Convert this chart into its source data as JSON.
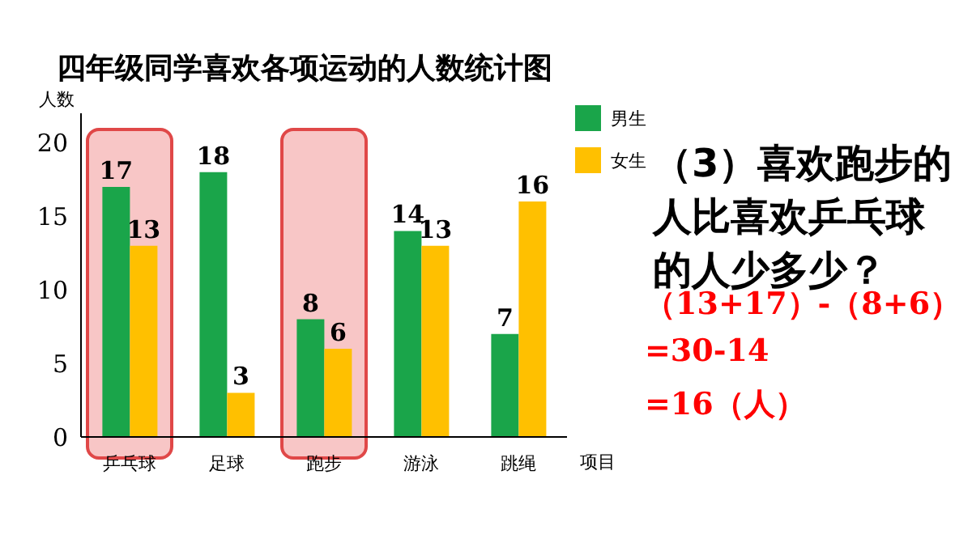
{
  "chart_data": {
    "type": "bar",
    "title": "四年级同学喜欢各项运动的人数统计图",
    "ylabel": "人数",
    "xlabel": "项目",
    "categories": [
      "乒乓球",
      "足球",
      "跑步",
      "游泳",
      "跳绳"
    ],
    "series": [
      {
        "name": "男生",
        "color": "#1aa54a",
        "values": [
          17,
          18,
          8,
          14,
          7
        ]
      },
      {
        "name": "女生",
        "color": "#ffc000",
        "values": [
          13,
          3,
          6,
          13,
          16
        ]
      }
    ],
    "ylim": [
      0,
      22
    ],
    "yticks": [
      0,
      5,
      10,
      15,
      20
    ],
    "grid": false,
    "legend": "top right",
    "data_labels": true,
    "bands": [
      {
        "axis": "x",
        "from": "乒乓球",
        "to": "乒乓球",
        "color": "#f4a0a0"
      },
      {
        "axis": "x",
        "from": "跑步",
        "to": "跑步",
        "color": "#f4a0a0"
      }
    ],
    "annotations": [
      "（3）喜欢跑步的人比喜欢乒乓球的人少多少？",
      "（13+17）-（8+6）",
      "=30-14",
      "=16（人）"
    ]
  }
}
